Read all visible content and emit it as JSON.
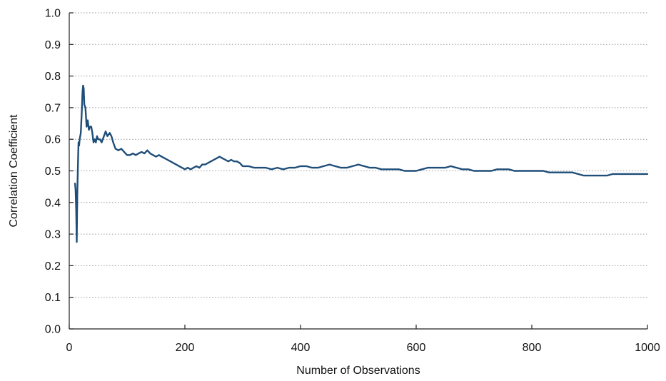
{
  "chart_data": {
    "type": "line",
    "title": "",
    "xlabel": "Number of Observations",
    "ylabel": "Correlation Coefficient",
    "xlim": [
      0,
      1000
    ],
    "ylim": [
      0.0,
      1.0
    ],
    "x_ticks": [
      0,
      200,
      400,
      600,
      800,
      1000
    ],
    "y_ticks": [
      0.0,
      0.1,
      0.2,
      0.3,
      0.4,
      0.5,
      0.6,
      0.7,
      0.8,
      0.9,
      1.0
    ],
    "x_tick_labels": [
      "0",
      "200",
      "400",
      "600",
      "800",
      "1000"
    ],
    "y_tick_labels": [
      "0.0",
      "0.1",
      "0.2",
      "0.3",
      "0.4",
      "0.5",
      "0.6",
      "0.7",
      "0.8",
      "0.9",
      "1.0"
    ],
    "grid": "horizontal dotted",
    "legend": "none",
    "colors": {
      "series": "#1f4e79",
      "grid": "#9a9a9a",
      "axis": "#222222"
    },
    "series": [
      {
        "x": [
          10,
          11,
          12,
          13,
          14,
          15,
          16,
          17,
          18,
          20,
          22,
          23,
          24,
          25,
          26,
          28,
          30,
          32,
          34,
          36,
          38,
          40,
          42,
          44,
          46,
          48,
          50,
          53,
          56,
          60,
          63,
          66,
          70,
          73,
          76,
          80,
          85,
          90,
          95,
          100,
          105,
          110,
          115,
          120,
          125,
          130,
          135,
          140,
          145,
          150,
          155,
          160,
          165,
          170,
          175,
          180,
          185,
          190,
          195,
          200,
          205,
          210,
          215,
          220,
          225,
          230,
          235,
          240,
          245,
          250,
          255,
          260,
          265,
          270,
          275,
          280,
          285,
          290,
          295,
          300,
          310,
          320,
          330,
          340,
          350,
          360,
          370,
          380,
          390,
          400,
          410,
          420,
          430,
          440,
          450,
          460,
          470,
          480,
          490,
          500,
          510,
          520,
          530,
          540,
          550,
          560,
          570,
          580,
          590,
          600,
          610,
          620,
          630,
          640,
          650,
          660,
          670,
          680,
          690,
          700,
          710,
          720,
          730,
          740,
          750,
          760,
          770,
          780,
          790,
          800,
          810,
          820,
          830,
          840,
          850,
          860,
          870,
          880,
          890,
          900,
          910,
          920,
          930,
          940,
          950,
          960,
          970,
          980,
          990,
          1000
        ],
        "y": [
          0.46,
          0.44,
          0.38,
          0.275,
          0.43,
          0.52,
          0.59,
          0.58,
          0.6,
          0.62,
          0.7,
          0.75,
          0.77,
          0.76,
          0.71,
          0.7,
          0.64,
          0.66,
          0.63,
          0.64,
          0.64,
          0.62,
          0.59,
          0.6,
          0.59,
          0.61,
          0.6,
          0.6,
          0.59,
          0.61,
          0.625,
          0.61,
          0.62,
          0.61,
          0.59,
          0.57,
          0.565,
          0.57,
          0.56,
          0.55,
          0.55,
          0.555,
          0.55,
          0.555,
          0.56,
          0.555,
          0.565,
          0.555,
          0.55,
          0.545,
          0.55,
          0.545,
          0.54,
          0.535,
          0.53,
          0.525,
          0.52,
          0.515,
          0.51,
          0.505,
          0.51,
          0.505,
          0.51,
          0.515,
          0.51,
          0.52,
          0.52,
          0.525,
          0.53,
          0.535,
          0.54,
          0.545,
          0.54,
          0.535,
          0.53,
          0.535,
          0.53,
          0.53,
          0.525,
          0.515,
          0.515,
          0.51,
          0.51,
          0.51,
          0.505,
          0.51,
          0.505,
          0.51,
          0.51,
          0.515,
          0.515,
          0.51,
          0.51,
          0.515,
          0.52,
          0.515,
          0.51,
          0.51,
          0.515,
          0.52,
          0.515,
          0.51,
          0.51,
          0.505,
          0.505,
          0.505,
          0.505,
          0.5,
          0.5,
          0.5,
          0.505,
          0.51,
          0.51,
          0.51,
          0.51,
          0.515,
          0.51,
          0.505,
          0.505,
          0.5,
          0.5,
          0.5,
          0.5,
          0.505,
          0.505,
          0.505,
          0.5,
          0.5,
          0.5,
          0.5,
          0.5,
          0.5,
          0.495,
          0.495,
          0.495,
          0.495,
          0.495,
          0.49,
          0.485,
          0.485,
          0.485,
          0.485,
          0.485,
          0.49,
          0.49,
          0.49,
          0.49,
          0.49,
          0.49,
          0.49
        ]
      }
    ]
  }
}
